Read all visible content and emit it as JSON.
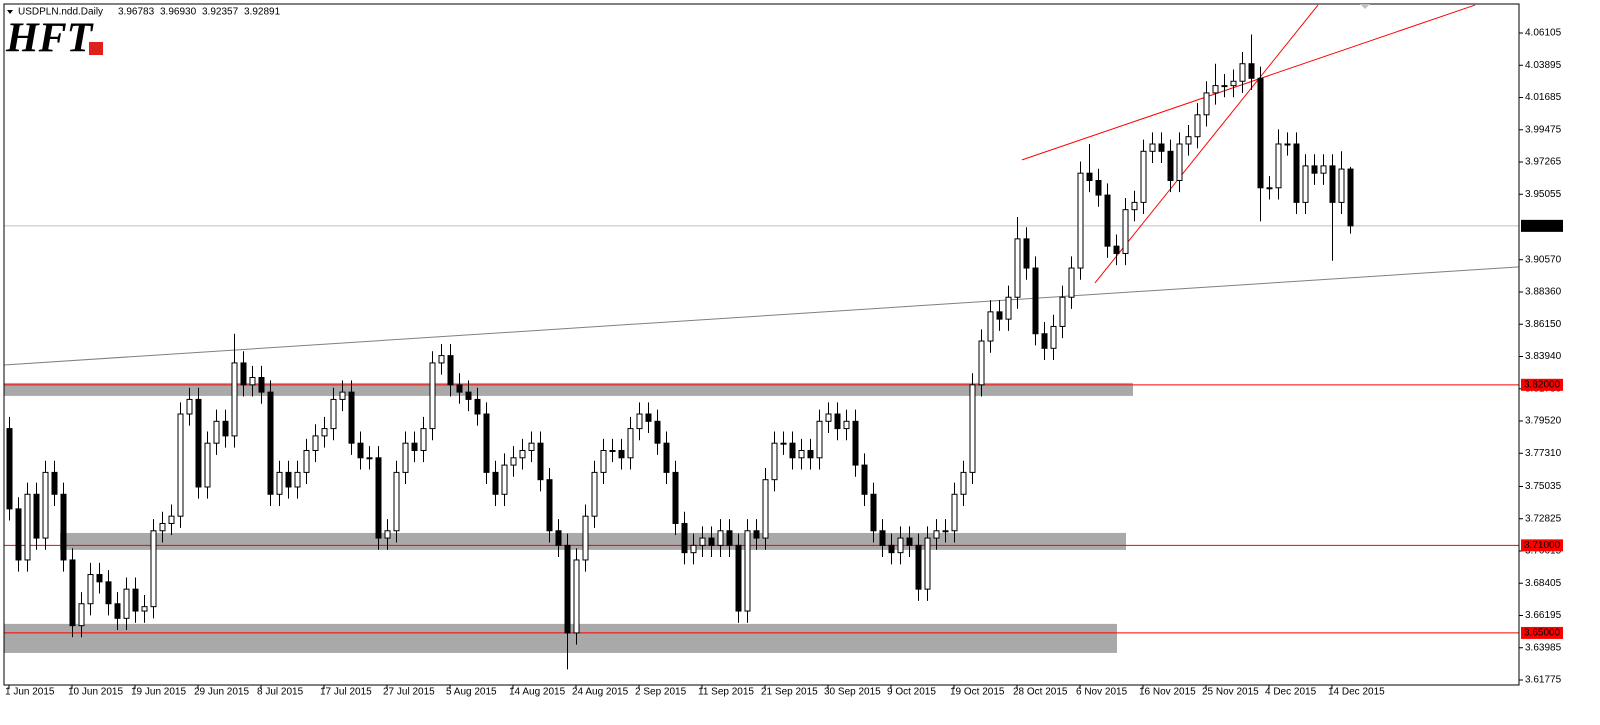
{
  "chart_data": {
    "type": "candlestick",
    "symbol": "USDPLN.ndd.Daily",
    "ohlc_labels": [
      "3.96783",
      "3.96930",
      "3.92357",
      "3.92891"
    ],
    "logo": "HFT",
    "categories": [
      "1 Jun 2015",
      null,
      null,
      null,
      null,
      null,
      null,
      "10 Jun 2015",
      null,
      null,
      null,
      null,
      null,
      null,
      "19 Jun 2015",
      null,
      null,
      null,
      null,
      null,
      null,
      "29 Jun 2015",
      null,
      null,
      null,
      null,
      null,
      null,
      "8 Jul 2015",
      null,
      null,
      null,
      null,
      null,
      null,
      "17 Jul 2015",
      null,
      null,
      null,
      null,
      null,
      null,
      "27 Jul 2015",
      null,
      null,
      null,
      null,
      null,
      null,
      "5 Aug 2015",
      null,
      null,
      null,
      null,
      null,
      null,
      "14 Aug 2015",
      null,
      null,
      null,
      null,
      null,
      null,
      "24 Aug 2015",
      null,
      null,
      null,
      null,
      null,
      null,
      "2 Sep 2015",
      null,
      null,
      null,
      null,
      null,
      null,
      "11 Sep 2015",
      null,
      null,
      null,
      null,
      null,
      null,
      "21 Sep 2015",
      null,
      null,
      null,
      null,
      null,
      null,
      "30 Sep 2015",
      null,
      null,
      null,
      null,
      null,
      null,
      "9 Oct 2015",
      null,
      null,
      null,
      null,
      null,
      null,
      "19 Oct 2015",
      null,
      null,
      null,
      null,
      null,
      null,
      "28 Oct 2015",
      null,
      null,
      null,
      null,
      null,
      null,
      "6 Nov 2015",
      null,
      null,
      null,
      null,
      null,
      null,
      "16 Nov 2015",
      null,
      null,
      null,
      null,
      null,
      null,
      "25 Nov 2015",
      null,
      null,
      null,
      null,
      null,
      null,
      "4 Dec 2015",
      null,
      null,
      null,
      null,
      null,
      null,
      "14 Dec 2015",
      null,
      null
    ],
    "open": [
      3.79,
      3.735,
      3.7,
      3.745,
      3.715,
      3.76,
      3.745,
      3.7,
      3.655,
      3.67,
      3.69,
      3.685,
      3.67,
      3.66,
      3.68,
      3.665,
      3.668,
      3.72,
      3.725,
      3.73,
      3.8,
      3.81,
      3.75,
      3.78,
      3.795,
      3.785,
      3.835,
      3.82,
      3.825,
      3.815,
      3.745,
      3.76,
      3.75,
      3.76,
      3.775,
      3.785,
      3.79,
      3.81,
      3.815,
      3.78,
      3.77,
      3.77,
      3.715,
      3.72,
      3.76,
      3.78,
      3.775,
      3.79,
      3.835,
      3.84,
      3.82,
      3.815,
      3.81,
      3.8,
      3.76,
      3.745,
      3.765,
      3.77,
      3.775,
      3.78,
      3.755,
      3.72,
      3.71,
      3.65,
      3.7,
      3.73,
      3.76,
      3.775,
      3.775,
      3.77,
      3.79,
      3.8,
      3.795,
      3.78,
      3.76,
      3.725,
      3.705,
      3.71,
      3.715,
      3.71,
      3.72,
      3.71,
      3.665,
      3.72,
      3.715,
      3.755,
      3.78,
      3.78,
      3.77,
      3.775,
      3.77,
      3.795,
      3.8,
      3.79,
      3.795,
      3.765,
      3.745,
      3.72,
      3.71,
      3.705,
      3.715,
      3.71,
      3.68,
      3.715,
      3.72,
      3.72,
      3.745,
      3.76,
      3.82,
      3.85,
      3.87,
      3.865,
      3.88,
      3.92,
      3.9,
      3.855,
      3.845,
      3.86,
      3.88,
      3.9,
      3.965,
      3.96,
      3.95,
      3.915,
      3.91,
      3.94,
      3.945,
      3.98,
      3.985,
      3.98,
      3.96,
      3.985,
      3.99,
      4.005,
      4.02,
      4.025,
      4.025,
      4.028,
      4.04,
      4.03,
      3.955,
      3.955,
      3.985,
      3.985,
      3.945,
      3.97,
      3.965,
      3.97,
      3.945,
      3.96783
    ],
    "high": [
      3.798,
      3.743,
      3.753,
      3.753,
      3.768,
      3.768,
      3.753,
      3.708,
      3.678,
      3.698,
      3.698,
      3.693,
      3.678,
      3.688,
      3.688,
      3.676,
      3.728,
      3.733,
      3.738,
      3.808,
      3.818,
      3.818,
      3.788,
      3.803,
      3.803,
      3.855,
      3.843,
      3.833,
      3.833,
      3.823,
      3.768,
      3.768,
      3.768,
      3.783,
      3.793,
      3.798,
      3.818,
      3.823,
      3.823,
      3.788,
      3.778,
      3.778,
      3.728,
      3.768,
      3.788,
      3.788,
      3.798,
      3.843,
      3.848,
      3.848,
      3.828,
      3.823,
      3.818,
      3.808,
      3.768,
      3.773,
      3.778,
      3.783,
      3.788,
      3.788,
      3.763,
      3.728,
      3.718,
      3.708,
      3.738,
      3.768,
      3.783,
      3.783,
      3.783,
      3.798,
      3.808,
      3.808,
      3.803,
      3.788,
      3.768,
      3.733,
      3.718,
      3.723,
      3.723,
      3.728,
      3.728,
      3.718,
      3.728,
      3.728,
      3.763,
      3.788,
      3.788,
      3.788,
      3.783,
      3.783,
      3.803,
      3.808,
      3.808,
      3.803,
      3.803,
      3.773,
      3.753,
      3.728,
      3.718,
      3.723,
      3.723,
      3.718,
      3.723,
      3.728,
      3.728,
      3.753,
      3.768,
      3.828,
      3.858,
      3.878,
      3.878,
      3.888,
      3.935,
      3.928,
      3.908,
      3.863,
      3.868,
      3.888,
      3.908,
      3.973,
      3.985,
      3.968,
      3.958,
      3.923,
      3.948,
      3.953,
      3.988,
      3.993,
      3.993,
      3.988,
      3.993,
      3.998,
      4.013,
      4.028,
      4.04,
      4.033,
      4.036,
      4.048,
      4.06,
      4.038,
      3.963,
      3.995,
      3.993,
      3.993,
      3.978,
      3.978,
      3.978,
      3.978,
      3.98,
      3.9693
    ],
    "low": [
      3.727,
      3.692,
      3.692,
      3.707,
      3.707,
      3.737,
      3.692,
      3.647,
      3.647,
      3.662,
      3.677,
      3.662,
      3.652,
      3.652,
      3.657,
      3.657,
      3.66,
      3.712,
      3.717,
      3.722,
      3.792,
      3.742,
      3.742,
      3.772,
      3.777,
      3.777,
      3.812,
      3.812,
      3.807,
      3.737,
      3.737,
      3.742,
      3.742,
      3.752,
      3.767,
      3.777,
      3.782,
      3.802,
      3.772,
      3.762,
      3.762,
      3.707,
      3.707,
      3.712,
      3.752,
      3.767,
      3.767,
      3.782,
      3.827,
      3.812,
      3.807,
      3.802,
      3.792,
      3.752,
      3.737,
      3.737,
      3.757,
      3.762,
      3.767,
      3.747,
      3.712,
      3.702,
      3.625,
      3.642,
      3.692,
      3.722,
      3.752,
      3.767,
      3.762,
      3.762,
      3.782,
      3.787,
      3.772,
      3.752,
      3.717,
      3.697,
      3.697,
      3.702,
      3.702,
      3.702,
      3.702,
      3.657,
      3.657,
      3.707,
      3.707,
      3.747,
      3.772,
      3.762,
      3.762,
      3.762,
      3.762,
      3.787,
      3.782,
      3.782,
      3.757,
      3.737,
      3.712,
      3.702,
      3.697,
      3.697,
      3.702,
      3.672,
      3.672,
      3.707,
      3.712,
      3.712,
      3.737,
      3.752,
      3.812,
      3.842,
      3.857,
      3.857,
      3.872,
      3.892,
      3.847,
      3.837,
      3.837,
      3.852,
      3.872,
      3.892,
      3.952,
      3.942,
      3.907,
      3.902,
      3.902,
      3.932,
      3.937,
      3.972,
      3.972,
      3.952,
      3.952,
      3.977,
      3.982,
      3.997,
      4.012,
      4.017,
      4.017,
      4.02,
      4.022,
      3.932,
      3.947,
      3.947,
      3.977,
      3.937,
      3.937,
      3.957,
      3.957,
      3.905,
      3.937,
      3.92357
    ],
    "close": [
      3.735,
      3.7,
      3.745,
      3.715,
      3.76,
      3.745,
      3.7,
      3.655,
      3.67,
      3.69,
      3.685,
      3.67,
      3.66,
      3.68,
      3.665,
      3.668,
      3.72,
      3.725,
      3.73,
      3.8,
      3.81,
      3.75,
      3.78,
      3.795,
      3.785,
      3.835,
      3.82,
      3.825,
      3.815,
      3.745,
      3.76,
      3.75,
      3.76,
      3.775,
      3.785,
      3.79,
      3.81,
      3.815,
      3.78,
      3.77,
      3.77,
      3.715,
      3.72,
      3.76,
      3.78,
      3.775,
      3.79,
      3.835,
      3.84,
      3.82,
      3.815,
      3.81,
      3.8,
      3.76,
      3.745,
      3.765,
      3.77,
      3.775,
      3.78,
      3.755,
      3.72,
      3.71,
      3.65,
      3.7,
      3.73,
      3.76,
      3.775,
      3.775,
      3.77,
      3.79,
      3.8,
      3.795,
      3.78,
      3.76,
      3.725,
      3.705,
      3.71,
      3.715,
      3.71,
      3.72,
      3.71,
      3.665,
      3.72,
      3.715,
      3.755,
      3.78,
      3.78,
      3.77,
      3.775,
      3.77,
      3.795,
      3.8,
      3.79,
      3.795,
      3.765,
      3.745,
      3.72,
      3.71,
      3.705,
      3.715,
      3.71,
      3.68,
      3.715,
      3.72,
      3.72,
      3.745,
      3.76,
      3.82,
      3.85,
      3.87,
      3.865,
      3.88,
      3.92,
      3.9,
      3.855,
      3.845,
      3.86,
      3.88,
      3.9,
      3.965,
      3.96,
      3.95,
      3.915,
      3.91,
      3.94,
      3.945,
      3.98,
      3.985,
      3.98,
      3.96,
      3.985,
      3.99,
      4.005,
      4.02,
      4.025,
      4.025,
      4.028,
      4.04,
      4.03,
      3.955,
      3.955,
      3.985,
      3.985,
      3.945,
      3.97,
      3.965,
      3.97,
      3.945,
      3.96783,
      3.92891
    ],
    "up_color": "#ffffff",
    "down_color": "#000000",
    "ylim": [
      3.61775,
      4.06105
    ],
    "yticks": [
      3.61775,
      3.63985,
      3.66195,
      3.68405,
      3.70615,
      3.72825,
      3.75035,
      {
        "value": 3.7731,
        "label": "3.77310"
      },
      {
        "value": 3.7952,
        "label": "3.79520"
      },
      {
        "value": 3.8173,
        "label": "3.81730"
      },
      {
        "value": 3.8394,
        "label": "3.83940"
      },
      {
        "value": 3.8615,
        "label": "3.86150"
      },
      {
        "value": 3.8836,
        "label": "3.88360"
      },
      {
        "value": 3.9057,
        "label": "3.90570"
      },
      3.95055,
      3.97265,
      3.99475,
      4.01685,
      4.03895,
      4.06105
    ],
    "grid": false,
    "levels": [
      {
        "value": 3.82,
        "label": "3.82000",
        "color": "#ff0000"
      },
      {
        "value": 3.71,
        "label": "3.71000",
        "color": "#ff0000"
      },
      {
        "value": 3.65,
        "label": "3.65000",
        "color": "#ff0000"
      }
    ],
    "zones": [
      {
        "from": 3.8124,
        "to": 3.8213,
        "color": "#a9a9a9"
      },
      {
        "from": 3.7069,
        "to": 3.7185,
        "color": "#a9a9a9"
      },
      {
        "from": 3.6363,
        "to": 3.6562,
        "color": "#a9a9a9"
      }
    ],
    "trendlines": [
      {
        "from": 3.8336,
        "to": 3.9008,
        "color": "#7f7f7f"
      },
      {
        "from": 3.9741,
        "to": 4.0802,
        "color": "#ff0000"
      },
      {
        "from": 3.8898,
        "to": 4.0802,
        "color": "#ff0000"
      }
    ],
    "price_line_color": "#c0c0c0"
  }
}
